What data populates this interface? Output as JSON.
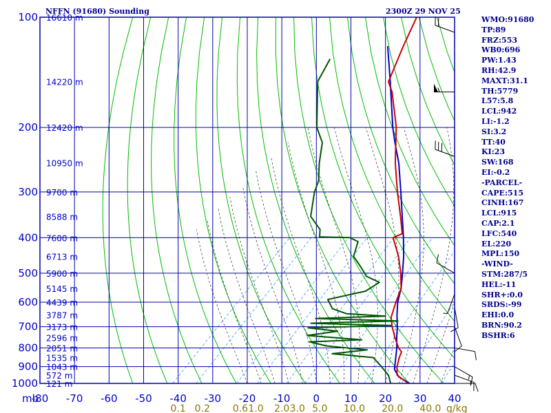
{
  "header": {
    "station": "NFFN (91680) Sounding",
    "time": "2300Z 29 NOV 25"
  },
  "colors": {
    "frame": "#0000aa",
    "dry_adiabat": "#00bb00",
    "moist_adiabat": "#444444",
    "mixing_ratio": "#3399ff",
    "temperature": "#cc0000",
    "dewpoint": "#005500",
    "parcel": "#0000cc",
    "text": "#00008b",
    "mix_label": "#8b7500"
  },
  "chart_data": {
    "type": "skew-t",
    "xlabel_unit": "mb",
    "mix_unit": "g/kg",
    "temperature_ticks": [
      "-80",
      "-70",
      "-60",
      "-50",
      "-40",
      "-30",
      "-20",
      "-10",
      "0",
      "10",
      "20",
      "30",
      "40"
    ],
    "pressure_levels": [
      100,
      200,
      300,
      400,
      500,
      600,
      700,
      800,
      900,
      1000
    ],
    "pressure_labels": [
      "100",
      "200",
      "300",
      "400",
      "500",
      "600",
      "700",
      "800",
      "900",
      "1000"
    ],
    "height_labels": [
      {
        "p": 100,
        "text": "16610 m"
      },
      {
        "p": 150,
        "text": "14220 m"
      },
      {
        "p": 200,
        "text": "12420 m"
      },
      {
        "p": 250,
        "text": "10950 m"
      },
      {
        "p": 300,
        "text": "9700 m"
      },
      {
        "p": 350,
        "text": "8588 m"
      },
      {
        "p": 400,
        "text": "7600 m"
      },
      {
        "p": 450,
        "text": "6713 m"
      },
      {
        "p": 500,
        "text": "5900 m"
      },
      {
        "p": 550,
        "text": "5145 m"
      },
      {
        "p": 600,
        "text": "4439 m"
      },
      {
        "p": 650,
        "text": "3787 m"
      },
      {
        "p": 700,
        "text": "3173 m"
      },
      {
        "p": 750,
        "text": "2596 m"
      },
      {
        "p": 800,
        "text": "2051 m"
      },
      {
        "p": 850,
        "text": "1535 m"
      },
      {
        "p": 900,
        "text": "1043 m"
      },
      {
        "p": 950,
        "text": "572 m"
      },
      {
        "p": 1000,
        "text": "121 m"
      }
    ],
    "mixing_ratio_labels": [
      {
        "label": "0.1",
        "t": -40
      },
      {
        "label": "0.2",
        "t": -33
      },
      {
        "label": "0.6",
        "t": -22
      },
      {
        "label": "1.0",
        "t": -17.5
      },
      {
        "label": "2.0",
        "t": -10
      },
      {
        "label": "3.0",
        "t": -5.5
      },
      {
        "label": "5.0",
        "t": 1
      },
      {
        "label": "10.0",
        "t": 11
      },
      {
        "label": "20.0",
        "t": 22
      },
      {
        "label": "40.0",
        "t": 33
      }
    ],
    "temperature": [
      {
        "p": 1000,
        "t": 26.5
      },
      {
        "p": 985,
        "t": 25.0
      },
      {
        "p": 950,
        "t": 21.0
      },
      {
        "p": 900,
        "t": 18.5
      },
      {
        "p": 850,
        "t": 16.5
      },
      {
        "p": 820,
        "t": 15.5
      },
      {
        "p": 800,
        "t": 13.5
      },
      {
        "p": 750,
        "t": 9.5
      },
      {
        "p": 700,
        "t": 5.5
      },
      {
        "p": 660,
        "t": 2.5
      },
      {
        "p": 620,
        "t": 0.5
      },
      {
        "p": 600,
        "t": -0.5
      },
      {
        "p": 550,
        "t": -3.0
      },
      {
        "p": 500,
        "t": -7.5
      },
      {
        "p": 450,
        "t": -13.0
      },
      {
        "p": 400,
        "t": -20.0
      },
      {
        "p": 390,
        "t": -18.5
      },
      {
        "p": 350,
        "t": -24.0
      },
      {
        "p": 300,
        "t": -32.0
      },
      {
        "p": 250,
        "t": -41.0
      },
      {
        "p": 200,
        "t": -51.0
      },
      {
        "p": 185,
        "t": -55.0
      },
      {
        "p": 160,
        "t": -62.5
      },
      {
        "p": 150,
        "t": -66.5
      },
      {
        "p": 120,
        "t": -72.5
      },
      {
        "p": 100,
        "t": -77.0
      }
    ],
    "dewpoint": [
      {
        "p": 1000,
        "t": 21.5
      },
      {
        "p": 950,
        "t": 18.5
      },
      {
        "p": 900,
        "t": 14.0
      },
      {
        "p": 850,
        "t": 9.0
      },
      {
        "p": 830,
        "t": -4.0
      },
      {
        "p": 810,
        "t": 5.0
      },
      {
        "p": 790,
        "t": -8.0
      },
      {
        "p": 770,
        "t": -14.0
      },
      {
        "p": 760,
        "t": 0.5
      },
      {
        "p": 740,
        "t": -16.5
      },
      {
        "p": 720,
        "t": -9.0
      },
      {
        "p": 705,
        "t": -18.5
      },
      {
        "p": 695,
        "t": 5.0
      },
      {
        "p": 685,
        "t": -19.0
      },
      {
        "p": 675,
        "t": 5.5
      },
      {
        "p": 665,
        "t": -19.0
      },
      {
        "p": 655,
        "t": 0.5
      },
      {
        "p": 645,
        "t": -11.5
      },
      {
        "p": 625,
        "t": -17.0
      },
      {
        "p": 590,
        "t": -21.0
      },
      {
        "p": 560,
        "t": -12.5
      },
      {
        "p": 530,
        "t": -11.0
      },
      {
        "p": 510,
        "t": -16.5
      },
      {
        "p": 480,
        "t": -21.0
      },
      {
        "p": 450,
        "t": -26.0
      },
      {
        "p": 410,
        "t": -29.0
      },
      {
        "p": 400,
        "t": -32.5
      },
      {
        "p": 398,
        "t": -41.5
      },
      {
        "p": 380,
        "t": -43.5
      },
      {
        "p": 350,
        "t": -50.0
      },
      {
        "p": 300,
        "t": -56.0
      },
      {
        "p": 280,
        "t": -58.0
      },
      {
        "p": 250,
        "t": -63.0
      },
      {
        "p": 220,
        "t": -68.0
      },
      {
        "p": 200,
        "t": -74.0
      },
      {
        "p": 150,
        "t": -87.0
      },
      {
        "p": 130,
        "t": -90.0
      }
    ],
    "parcel": [
      {
        "p": 1000,
        "t": 27.0
      },
      {
        "p": 960,
        "t": 22.0
      },
      {
        "p": 915,
        "t": 18.5
      },
      {
        "p": 850,
        "t": 15.5
      },
      {
        "p": 800,
        "t": 13.0
      },
      {
        "p": 750,
        "t": 10.0
      },
      {
        "p": 700,
        "t": 7.0
      },
      {
        "p": 650,
        "t": 3.5
      },
      {
        "p": 600,
        "t": 0.0
      },
      {
        "p": 550,
        "t": -3.0
      },
      {
        "p": 500,
        "t": -7.0
      },
      {
        "p": 450,
        "t": -11.5
      },
      {
        "p": 400,
        "t": -17.0
      },
      {
        "p": 350,
        "t": -23.5
      },
      {
        "p": 300,
        "t": -31.0
      },
      {
        "p": 250,
        "t": -40.0
      },
      {
        "p": 220,
        "t": -47.0
      },
      {
        "p": 200,
        "t": -52.0
      },
      {
        "p": 150,
        "t": -66.0
      },
      {
        "p": 120,
        "t": -77.0
      }
    ],
    "winds": [
      {
        "p": 110,
        "dir": 290,
        "spd": 20
      },
      {
        "p": 160,
        "dir": 270,
        "spd": 55
      },
      {
        "p": 240,
        "dir": 290,
        "spd": 30
      },
      {
        "p": 500,
        "dir": 300,
        "spd": 10
      },
      {
        "p": 570,
        "dir": 200,
        "spd": 5
      },
      {
        "p": 620,
        "dir": 170,
        "spd": 10
      },
      {
        "p": 700,
        "dir": 160,
        "spd": 10
      },
      {
        "p": 800,
        "dir": 100,
        "spd": 10
      },
      {
        "p": 900,
        "dir": 120,
        "spd": 15
      },
      {
        "p": 950,
        "dir": 110,
        "spd": 15
      },
      {
        "p": 1000,
        "dir": 90,
        "spd": 10
      }
    ]
  },
  "indices": [
    "WMO:91680",
    "TP:89",
    "FRZ:553",
    "WB0:696",
    "PW:1.43",
    "RH:42.9",
    "MAXT:31.1",
    "TH:5779",
    "L57:5.8",
    "LCL:942",
    "LI:-1.2",
    "SI:3.2",
    "TT:40",
    "KI:23",
    "SW:168",
    "EI:-0.2",
    "-PARCEL-",
    "CAPE:515",
    "CINH:167",
    "LCL:915",
    "CAP:2.1",
    "LFC:540",
    "EL:220",
    "MPL:150",
    "-WIND-",
    "STM:287/5",
    "HEL:-11",
    "SHR+:0.0",
    "SRDS:-99",
    "EHI:0.0",
    "BRN:90.2",
    "BSHR:6"
  ]
}
